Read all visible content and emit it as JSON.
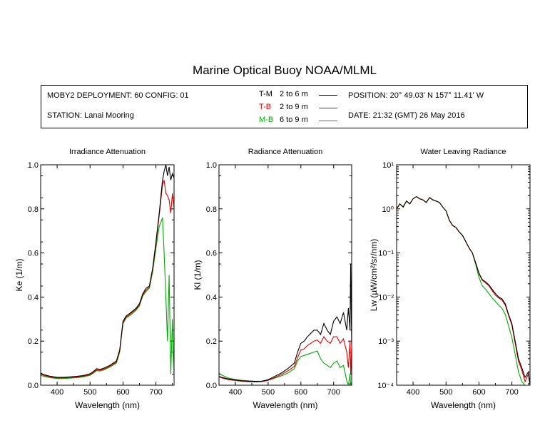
{
  "title": "Marine Optical Buoy NOAA/MLML",
  "info": {
    "deployment": "MOBY2 DEPLOYMENT: 60 CONFIG: 01",
    "station": "STATION: Lanai Mooring",
    "position": "POSITION: 20° 49.03' N   157° 11.41' W",
    "date": "DATE: 21:32 (GMT) 26 May 2016",
    "legend": [
      {
        "code": "T-M",
        "range": "2 to 6  m",
        "color": "#000000"
      },
      {
        "code": "T-B",
        "range": "2 to 9  m",
        "color": "#dd0000"
      },
      {
        "code": "M-B",
        "range": "6 to 9  m",
        "color": "#00aa00"
      }
    ]
  },
  "colors": {
    "T-M": "#000000",
    "T-B": "#dd0000",
    "M-B": "#00aa00",
    "axis": "#000000"
  },
  "chart_data": [
    {
      "type": "line",
      "title": "Irradiance Attenuation",
      "xlabel": "Wavelength (nm)",
      "ylabel": "Ke  (1/m)",
      "xlim": [
        350,
        755
      ],
      "ylim": [
        0,
        1.0
      ],
      "xticks": [
        400,
        500,
        600,
        700
      ],
      "yticks": [
        0.0,
        0.2,
        0.4,
        0.6,
        0.8,
        1.0
      ],
      "ytick_labels": [
        "0.0",
        "0.2",
        "0.4",
        "0.6",
        "0.8",
        "1.0"
      ],
      "series": [
        {
          "name": "T-M",
          "x": [
            350,
            360,
            380,
            400,
            420,
            440,
            460,
            480,
            500,
            510,
            520,
            530,
            540,
            560,
            580,
            590,
            600,
            610,
            620,
            640,
            650,
            660,
            670,
            680,
            690,
            700,
            710,
            720,
            725,
            730,
            735,
            740,
            745,
            750,
            755
          ],
          "y": [
            0.055,
            0.048,
            0.04,
            0.036,
            0.036,
            0.038,
            0.04,
            0.044,
            0.052,
            0.062,
            0.075,
            0.072,
            0.076,
            0.09,
            0.11,
            0.16,
            0.29,
            0.315,
            0.325,
            0.35,
            0.37,
            0.415,
            0.44,
            0.45,
            0.53,
            0.65,
            0.78,
            0.93,
            0.97,
            1.0,
            0.95,
            0.99,
            0.93,
            0.96,
            0.94
          ]
        },
        {
          "name": "T-B",
          "x": [
            350,
            360,
            380,
            400,
            420,
            440,
            460,
            480,
            500,
            510,
            520,
            530,
            540,
            560,
            580,
            590,
            600,
            610,
            620,
            640,
            650,
            660,
            670,
            680,
            690,
            700,
            710,
            720,
            725,
            730,
            735,
            740,
            745,
            750,
            755
          ],
          "y": [
            0.05,
            0.044,
            0.037,
            0.033,
            0.033,
            0.035,
            0.037,
            0.041,
            0.048,
            0.058,
            0.07,
            0.068,
            0.072,
            0.086,
            0.105,
            0.155,
            0.285,
            0.31,
            0.32,
            0.345,
            0.365,
            0.41,
            0.432,
            0.445,
            0.525,
            0.64,
            0.77,
            0.91,
            0.93,
            0.87,
            0.86,
            0.84,
            0.78,
            0.87,
            0.8
          ]
        },
        {
          "name": "M-B",
          "x": [
            350,
            360,
            380,
            400,
            420,
            440,
            460,
            480,
            500,
            510,
            520,
            530,
            540,
            560,
            580,
            590,
            600,
            610,
            620,
            640,
            650,
            660,
            670,
            680,
            690,
            700,
            710,
            720,
            725,
            730,
            735,
            740,
            745,
            750,
            755
          ],
          "y": [
            0.045,
            0.04,
            0.034,
            0.03,
            0.03,
            0.032,
            0.034,
            0.038,
            0.045,
            0.055,
            0.066,
            0.064,
            0.068,
            0.082,
            0.1,
            0.15,
            0.28,
            0.305,
            0.315,
            0.34,
            0.36,
            0.405,
            0.425,
            0.44,
            0.515,
            0.62,
            0.72,
            0.76,
            0.6,
            0.4,
            0.2,
            0.5,
            0.05,
            0.3,
            0.0
          ]
        }
      ]
    },
    {
      "type": "line",
      "title": "Radiance Attenuation",
      "xlabel": "Wavelength (nm)",
      "ylabel": "Kl  (1/m)",
      "xlim": [
        350,
        755
      ],
      "ylim": [
        0,
        1.0
      ],
      "xticks": [
        400,
        500,
        600,
        700
      ],
      "yticks": [
        0.0,
        0.2,
        0.4,
        0.6,
        0.8,
        1.0
      ],
      "ytick_labels": [
        "0.0",
        "0.2",
        "0.4",
        "0.6",
        "0.8",
        "1.0"
      ],
      "series": [
        {
          "name": "T-M",
          "x": [
            350,
            360,
            380,
            400,
            420,
            440,
            460,
            480,
            500,
            520,
            540,
            560,
            580,
            590,
            600,
            610,
            620,
            640,
            650,
            660,
            670,
            680,
            690,
            700,
            710,
            720,
            730,
            740,
            745,
            750,
            752,
            755
          ],
          "y": [
            0.04,
            0.035,
            0.028,
            0.024,
            0.02,
            0.018,
            0.017,
            0.018,
            0.025,
            0.04,
            0.055,
            0.075,
            0.1,
            0.15,
            0.19,
            0.2,
            0.22,
            0.25,
            0.25,
            0.23,
            0.28,
            0.25,
            0.23,
            0.29,
            0.31,
            0.28,
            0.33,
            0.25,
            0.35,
            0.25,
            0.55,
            0.18
          ]
        },
        {
          "name": "T-B",
          "x": [
            350,
            360,
            380,
            400,
            420,
            440,
            460,
            480,
            500,
            520,
            540,
            560,
            580,
            590,
            600,
            610,
            620,
            640,
            650,
            660,
            670,
            680,
            690,
            700,
            710,
            720,
            730,
            740,
            745,
            750,
            752,
            755
          ],
          "y": [
            0.038,
            0.032,
            0.025,
            0.021,
            0.018,
            0.016,
            0.015,
            0.016,
            0.022,
            0.035,
            0.048,
            0.065,
            0.085,
            0.125,
            0.16,
            0.165,
            0.18,
            0.2,
            0.205,
            0.19,
            0.22,
            0.2,
            0.19,
            0.22,
            0.22,
            0.19,
            0.21,
            0.15,
            0.08,
            0.2,
            0.05,
            0.18
          ]
        },
        {
          "name": "M-B",
          "x": [
            350,
            360,
            380,
            400,
            420,
            440,
            460,
            480,
            500,
            520,
            540,
            560,
            580,
            590,
            600,
            610,
            620,
            640,
            650,
            660,
            670,
            680,
            690,
            700,
            710,
            720,
            730,
            740,
            745,
            750,
            752,
            755
          ],
          "y": [
            0.055,
            0.045,
            0.032,
            0.026,
            0.022,
            0.02,
            0.018,
            0.018,
            0.022,
            0.032,
            0.042,
            0.055,
            0.075,
            0.11,
            0.13,
            0.135,
            0.14,
            0.15,
            0.155,
            0.12,
            0.1,
            0.09,
            0.08,
            0.1,
            0.11,
            0.08,
            0.09,
            0.02,
            0.0,
            0.05,
            0.0,
            0.02
          ]
        }
      ]
    },
    {
      "type": "line",
      "title": "Water Leaving Radiance",
      "xlabel": "Wavelength (nm)",
      "ylabel": "Lw  (µW/cm²/sr/nm)",
      "xlim": [
        350,
        755
      ],
      "ylim": [
        0.0001,
        10
      ],
      "yscale": "log",
      "xticks": [
        400,
        500,
        600,
        700
      ],
      "yticks": [
        0.0001,
        0.001,
        0.01,
        0.1,
        1,
        10
      ],
      "ytick_labels": [
        "10⁻⁴",
        "10⁻³",
        "10⁻²",
        "10⁻¹",
        "10⁰",
        "10¹"
      ],
      "series": [
        {
          "name": "T-M",
          "x": [
            350,
            360,
            370,
            380,
            390,
            400,
            410,
            420,
            430,
            440,
            450,
            460,
            470,
            480,
            490,
            500,
            510,
            520,
            530,
            540,
            550,
            560,
            570,
            580,
            590,
            600,
            610,
            620,
            630,
            640,
            650,
            660,
            670,
            680,
            690,
            700,
            710,
            720,
            730,
            740,
            750,
            755
          ],
          "y": [
            1.0,
            1.3,
            1.1,
            1.5,
            1.3,
            1.7,
            1.9,
            1.7,
            1.6,
            1.4,
            1.8,
            1.6,
            1.5,
            1.4,
            1.1,
            0.9,
            0.55,
            0.42,
            0.38,
            0.3,
            0.25,
            0.18,
            0.13,
            0.1,
            0.06,
            0.035,
            0.025,
            0.022,
            0.019,
            0.015,
            0.012,
            0.01,
            0.009,
            0.007,
            0.004,
            0.0025,
            0.001,
            0.0004,
            0.00025,
            0.00015,
            0.0002,
            0.0001
          ]
        },
        {
          "name": "T-B",
          "x": [
            350,
            360,
            370,
            380,
            390,
            400,
            410,
            420,
            430,
            440,
            450,
            460,
            470,
            480,
            490,
            500,
            510,
            520,
            530,
            540,
            550,
            560,
            570,
            580,
            590,
            600,
            610,
            620,
            630,
            640,
            650,
            660,
            670,
            680,
            690,
            700,
            710,
            720,
            730,
            740,
            750,
            755
          ],
          "y": [
            1.0,
            1.3,
            1.1,
            1.5,
            1.3,
            1.7,
            1.9,
            1.7,
            1.6,
            1.4,
            1.8,
            1.6,
            1.5,
            1.4,
            1.1,
            0.9,
            0.55,
            0.42,
            0.38,
            0.3,
            0.25,
            0.18,
            0.13,
            0.1,
            0.06,
            0.034,
            0.024,
            0.021,
            0.018,
            0.014,
            0.011,
            0.0095,
            0.0085,
            0.0065,
            0.0038,
            0.0023,
            0.0009,
            0.00035,
            0.00022,
            0.00012,
            0.00018,
            0.0001
          ]
        },
        {
          "name": "M-B",
          "x": [
            350,
            360,
            370,
            380,
            390,
            400,
            410,
            420,
            430,
            440,
            450,
            460,
            470,
            480,
            490,
            500,
            510,
            520,
            530,
            540,
            550,
            560,
            570,
            580,
            590,
            600,
            610,
            620,
            630,
            640,
            650,
            660,
            670,
            680,
            690,
            700,
            710,
            720,
            730,
            740,
            750,
            755
          ],
          "y": [
            1.0,
            1.3,
            1.1,
            1.5,
            1.3,
            1.7,
            1.9,
            1.7,
            1.6,
            1.4,
            1.8,
            1.6,
            1.5,
            1.4,
            1.1,
            0.9,
            0.55,
            0.42,
            0.38,
            0.3,
            0.25,
            0.18,
            0.13,
            0.1,
            0.055,
            0.028,
            0.018,
            0.015,
            0.012,
            0.0095,
            0.008,
            0.0065,
            0.0055,
            0.004,
            0.0022,
            0.0012,
            0.0005,
            0.0002,
            0.00012,
            0.0001,
            0.0001,
            0.0001
          ]
        }
      ]
    }
  ]
}
